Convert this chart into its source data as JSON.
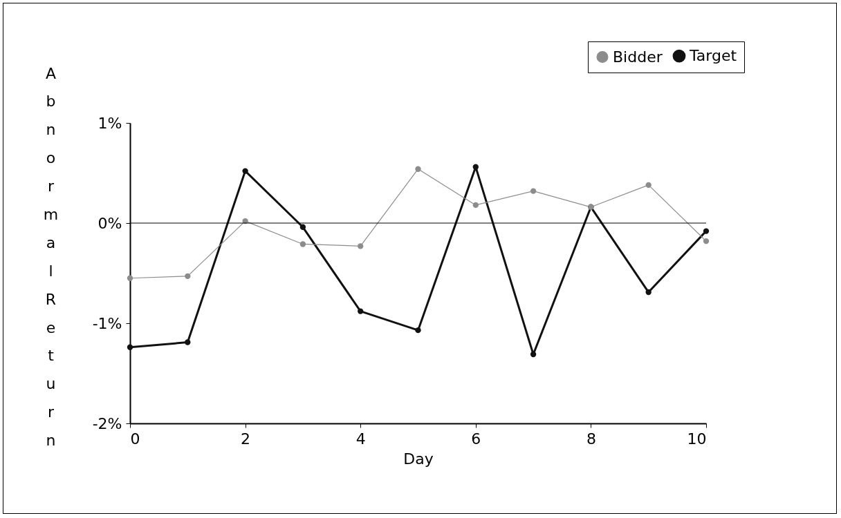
{
  "chart_data": {
    "type": "line",
    "xlabel": "Day",
    "ylabel": "Abnormal Return",
    "x": [
      0,
      1,
      2,
      3,
      4,
      5,
      6,
      7,
      8,
      9,
      10
    ],
    "series": [
      {
        "name": "Bidder",
        "color": "#8c8c8c",
        "values": [
          -0.55,
          -0.53,
          0.02,
          -0.21,
          -0.23,
          0.54,
          0.18,
          0.32,
          0.16,
          0.38,
          -0.18
        ]
      },
      {
        "name": "Target",
        "color": "#111111",
        "values": [
          -1.24,
          -1.19,
          0.52,
          -0.04,
          -0.88,
          -1.07,
          0.56,
          -1.31,
          0.16,
          -0.69,
          -0.08
        ]
      }
    ],
    "xlim": [
      0,
      10
    ],
    "xticks": [
      0,
      2,
      4,
      6,
      8,
      10
    ],
    "ylim": [
      -2,
      1
    ],
    "yticks": [
      {
        "value": 1,
        "label": "1%"
      },
      {
        "value": 0,
        "label": "0%"
      },
      {
        "value": -1,
        "label": "-1%"
      },
      {
        "value": -2,
        "label": "-2%"
      }
    ],
    "ref_lines": [
      {
        "axis": "y",
        "value": 0,
        "color": "#000000"
      }
    ],
    "grid": false,
    "legend": "top right",
    "marker": "circle",
    "line_style": "solid"
  }
}
